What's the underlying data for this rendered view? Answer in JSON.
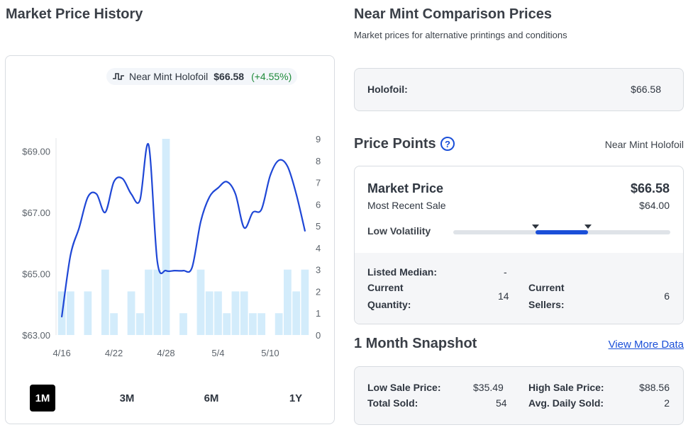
{
  "history": {
    "title": "Market Price History",
    "legend": {
      "name": "Near Mint Holofoil",
      "price": "$66.58",
      "change": "(+4.55%)",
      "icon": "step-line-icon",
      "line_color": "#1f47d6"
    },
    "ranges": [
      "1M",
      "3M",
      "6M",
      "1Y"
    ],
    "active_range": "1M"
  },
  "chart_data": {
    "type": "line",
    "x_ticks": [
      "4/16",
      "4/22",
      "4/28",
      "5/4",
      "5/10"
    ],
    "y_ticks": [
      "$63.00",
      "$65.00",
      "$67.00",
      "$69.00"
    ],
    "ylim": [
      63.0,
      69.4
    ],
    "y2_ticks": [
      "0",
      "1",
      "2",
      "3",
      "4",
      "5",
      "6",
      "7",
      "8",
      "9"
    ],
    "y2lim": [
      0,
      9
    ],
    "line_color": "#1f47d6",
    "bar_color": "#d3ecfb",
    "series": [
      {
        "name": "Near Mint Holofoil",
        "values": [
          63.6,
          65.6,
          66.5,
          67.5,
          67.6,
          67.0,
          68.0,
          68.1,
          67.6,
          67.4,
          69.2,
          65.4,
          65.1,
          65.1,
          65.1,
          65.2,
          66.7,
          67.5,
          67.8,
          68.0,
          67.6,
          66.5,
          67.0,
          67.1,
          68.2,
          68.7,
          68.5,
          67.6,
          66.4
        ]
      },
      {
        "name": "Volume",
        "values": [
          2,
          2,
          0,
          2,
          0,
          3,
          1,
          0,
          2,
          1,
          3,
          3,
          9,
          0,
          1,
          0,
          3,
          2,
          2,
          1,
          2,
          2,
          1,
          1,
          0,
          1,
          3,
          2,
          3
        ]
      }
    ]
  },
  "comparison": {
    "title": "Near Mint Comparison Prices",
    "subtitle": "Market prices for alternative printings and conditions",
    "holofoil_label": "Holofoil:",
    "holofoil_value": "$66.58"
  },
  "price_points": {
    "title": "Price Points",
    "help_icon": "question-circle-icon",
    "variant": "Near Mint Holofoil",
    "market_price_label": "Market Price",
    "market_price_value": "$66.58",
    "recent_sale_label": "Most Recent Sale",
    "recent_sale_value": "$64.00",
    "volatility_label": "Low Volatility",
    "volatility_level": [
      0.38,
      0.62
    ],
    "listed_median_label": "Listed Median:",
    "listed_median_value": "-",
    "current_quantity_label_1": "Current",
    "current_quantity_label_2": "Quantity:",
    "current_quantity_value": "14",
    "current_sellers_label_1": "Current",
    "current_sellers_label_2": "Sellers:",
    "current_sellers_value": "6"
  },
  "snapshot": {
    "title": "1 Month Snapshot",
    "link": "View More Data",
    "low_sale_label": "Low Sale Price:",
    "low_sale_value": "$35.49",
    "high_sale_label": "High Sale Price:",
    "high_sale_value": "$88.56",
    "total_sold_label": "Total Sold:",
    "total_sold_value": "54",
    "avg_daily_label": "Avg. Daily Sold:",
    "avg_daily_value": "2"
  }
}
